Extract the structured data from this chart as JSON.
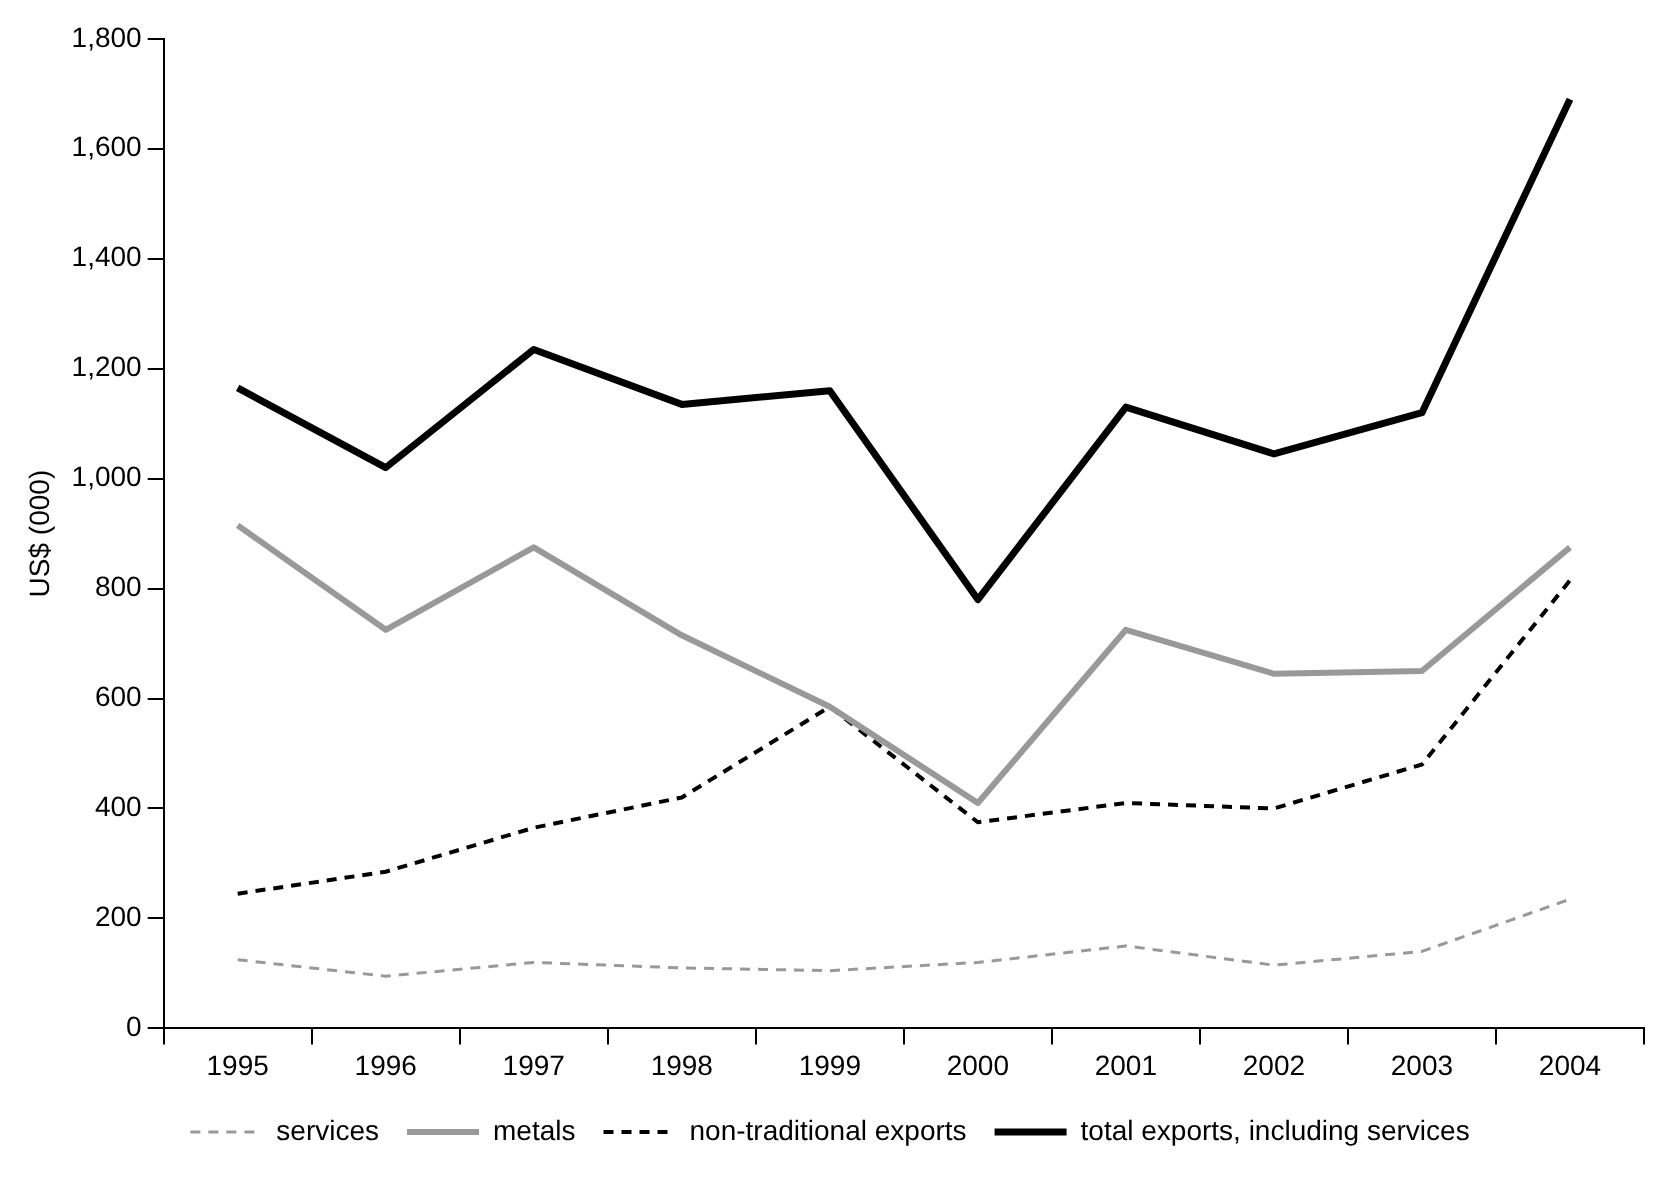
{
  "chart_data": {
    "type": "line",
    "ylabel": "US$ (000)",
    "categories": [
      "1995",
      "1996",
      "1997",
      "1998",
      "1999",
      "2000",
      "2001",
      "2002",
      "2003",
      "2004"
    ],
    "series": [
      {
        "name": "services",
        "color": "#999999",
        "line_style": "dashed",
        "values": [
          125,
          95,
          120,
          110,
          105,
          120,
          150,
          115,
          140,
          235
        ]
      },
      {
        "name": "metals",
        "color": "#999999",
        "line_style": "solid",
        "values": [
          915,
          725,
          875,
          715,
          585,
          410,
          725,
          645,
          650,
          875
        ]
      },
      {
        "name": "non-traditional exports",
        "color": "#000000",
        "line_style": "dashed",
        "values": [
          245,
          285,
          365,
          420,
          585,
          375,
          410,
          400,
          480,
          815
        ]
      },
      {
        "name": "total exports, including services",
        "color": "#000000",
        "line_style": "solid",
        "values": [
          1165,
          1020,
          1235,
          1135,
          1160,
          780,
          1130,
          1045,
          1120,
          1690
        ]
      }
    ],
    "ylim": [
      0,
      1800
    ],
    "yticks": [
      0,
      200,
      400,
      600,
      800,
      {
        "value": 1000,
        "label": "1,000"
      },
      {
        "value": 1200,
        "label": "1,200"
      },
      {
        "value": 1400,
        "label": "1,400"
      },
      {
        "value": 1600,
        "label": "1,600"
      },
      {
        "value": 1800,
        "label": "1,800"
      }
    ],
    "grid": false,
    "legend": "bottom",
    "marker": "none"
  }
}
